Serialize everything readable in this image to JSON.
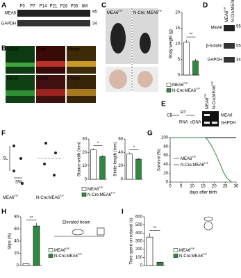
{
  "panels": {
    "a": {
      "label": "A",
      "columns": [
        "P0",
        "P7",
        "P14",
        "P21",
        "P28",
        "P35",
        "8M"
      ],
      "rows": [
        "MEA6",
        "GAPDH"
      ],
      "markers": [
        "95",
        "34"
      ]
    },
    "b": {
      "label": "B",
      "rows": [
        [
          "MEA6",
          "Calb",
          "Merge"
        ],
        [
          "MEA6",
          "NeuN",
          "Merge"
        ]
      ]
    },
    "c": {
      "label": "C",
      "photos": [
        {
          "base": "MEA6",
          "sup": "F/F"
        },
        {
          "base": "N-Cre; MEA6",
          "sup": "F/F"
        }
      ],
      "chart": {
        "ylabel": "Body weight (g)",
        "ylim": [
          0,
          20
        ],
        "yticks": [
          0,
          5,
          10,
          15,
          20
        ],
        "values": [
          10.5,
          4.5
        ],
        "errors": [
          0.8,
          0.7
        ],
        "colors": [
          "#ffffff",
          "#2e8b3e"
        ],
        "significance": "**"
      },
      "legend": [
        {
          "base": "MEA6",
          "sup": "F/F"
        },
        {
          "base": "N-Cre;MEA6",
          "sup": "F/F"
        }
      ]
    },
    "d": {
      "label": "D",
      "columns": [
        {
          "base": "MEA6",
          "sup": "F/F"
        },
        {
          "base": "N-Cre;MEA6",
          "sup": "F/F"
        }
      ],
      "rows": [
        "MEA6",
        "β-tubulin",
        "GAPDH"
      ],
      "markers": [
        "95",
        "55",
        "34"
      ]
    },
    "e": {
      "label": "E",
      "steps": [
        "CB",
        "RT"
      ],
      "products": [
        "RNA",
        "cDNA"
      ],
      "columns": [
        {
          "base": "MEA6",
          "sup": "F/F"
        },
        {
          "base": "N-Cre;MEA6",
          "sup": "F/F"
        }
      ],
      "genes": [
        "MEA6",
        "GAPDH"
      ]
    },
    "f": {
      "label": "F",
      "stride": "SL",
      "width": "SW",
      "groups": [
        {
          "base": "MEA6",
          "sup": "F/F"
        },
        {
          "base": "N-Cre;MEA6",
          "sup": "F/F"
        }
      ],
      "charts": [
        {
          "ylabel": "Stance width (mm)",
          "ylim": [
            0,
            30
          ],
          "yticks": [
            0,
            10,
            20,
            30
          ],
          "values": [
            22,
            17
          ],
          "errors": [
            1,
            1
          ],
          "colors": [
            "#ffffff",
            "#2e8b3e"
          ],
          "significance": "*"
        },
        {
          "ylabel": "Stride length (mm)",
          "ylim": [
            0,
            60
          ],
          "yticks": [
            0,
            20,
            40,
            60
          ],
          "values": [
            38,
            30
          ],
          "errors": [
            2,
            2
          ],
          "colors": [
            "#ffffff",
            "#2e8b3e"
          ],
          "significance": "*"
        }
      ],
      "legend": [
        {
          "base": "MEA6",
          "sup": "F/F"
        },
        {
          "base": "N-Cre;MEA6",
          "sup": "F/F"
        }
      ]
    },
    "g": {
      "label": "G",
      "type": "line",
      "ylabel": "Survival (%)",
      "xlabel": "days after birth",
      "xlim": [
        0,
        30
      ],
      "ylim": [
        0,
        100
      ],
      "xticks": [
        0,
        5,
        10,
        15,
        20,
        25,
        30
      ],
      "yticks": [
        0,
        20,
        40,
        60,
        80,
        100
      ],
      "series": [
        {
          "name": {
            "base": "MEA6",
            "sup": "F/F"
          },
          "color": "#000000",
          "x": [
            0,
            30
          ],
          "values": [
            100,
            100
          ]
        },
        {
          "name": {
            "base": "N-Cre;MEA6",
            "sup": "F/F"
          },
          "color": "#2e8b3e",
          "x": [
            0,
            16,
            17,
            18,
            19,
            20,
            21,
            22,
            23,
            24,
            25,
            26,
            27,
            28
          ],
          "values": [
            100,
            100,
            95,
            88,
            80,
            70,
            60,
            48,
            38,
            25,
            15,
            8,
            4,
            0
          ]
        }
      ]
    },
    "h": {
      "label": "H",
      "caption": "Elevated beam",
      "chart": {
        "ylabel": "Slips (%)",
        "ylim": [
          0,
          80
        ],
        "yticks": [
          0,
          20,
          40,
          60,
          80
        ],
        "values": [
          3,
          65
        ],
        "errors": [
          1,
          5
        ],
        "colors": [
          "#ffffff",
          "#2e8b3e"
        ],
        "significance": "**"
      },
      "legend": [
        {
          "base": "MEA6",
          "sup": "F/F"
        },
        {
          "base": "N-Cre;MEA6",
          "sup": "F/F"
        }
      ]
    },
    "i": {
      "label": "I",
      "chart": {
        "ylabel": "Time spent on rotarod (s)",
        "ylim": [
          0,
          600
        ],
        "yticks": [
          0,
          100,
          200,
          300,
          400,
          500,
          600
        ],
        "values": [
          350,
          40
        ],
        "errors": [
          50,
          10
        ],
        "colors": [
          "#ffffff",
          "#2e8b3e"
        ],
        "significance": "**"
      },
      "legend": [
        {
          "base": "MEA6",
          "sup": "F/F"
        },
        {
          "base": "N-Cre;MEA6",
          "sup": "F/F"
        }
      ]
    }
  }
}
